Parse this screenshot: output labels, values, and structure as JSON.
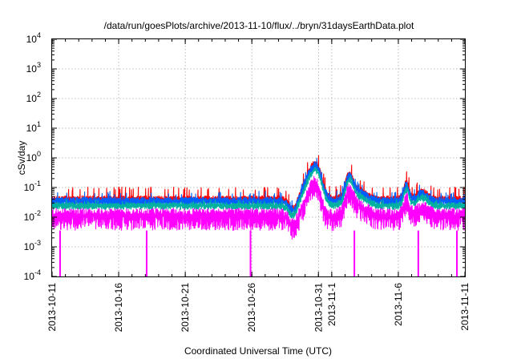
{
  "chart_data": {
    "type": "line",
    "title": "/data/run/goesPlots/archive/2013-11-10/flux/../bryn/31daysEarthData.plot",
    "xlabel": "Coordinated Universal Time (UTC)",
    "ylabel": "cSv/day",
    "yscale": "log",
    "ylim": [
      0.0001,
      10000
    ],
    "xlim": [
      "2013-10-11",
      "2013-11-11"
    ],
    "grid": true,
    "yticks": [
      {
        "value": 0.0001,
        "base": "10",
        "exp": "-4"
      },
      {
        "value": 0.001,
        "base": "10",
        "exp": "-3"
      },
      {
        "value": 0.01,
        "base": "10",
        "exp": "-2"
      },
      {
        "value": 0.1,
        "base": "10",
        "exp": "-1"
      },
      {
        "value": 1,
        "base": "10",
        "exp": "0"
      },
      {
        "value": 10,
        "base": "10",
        "exp": "1"
      },
      {
        "value": 100,
        "base": "10",
        "exp": "2"
      },
      {
        "value": 1000,
        "base": "10",
        "exp": "3"
      },
      {
        "value": 10000,
        "base": "10",
        "exp": "4"
      }
    ],
    "xticks": [
      {
        "label": "2013-10-11",
        "day": 0
      },
      {
        "label": "2013-10-16",
        "day": 5
      },
      {
        "label": "2013-10-21",
        "day": 10
      },
      {
        "label": "2013-10-26",
        "day": 15
      },
      {
        "label": "2013-10-31",
        "day": 20
      },
      {
        "label": "2013-11-1",
        "day": 21
      },
      {
        "label": "2013-11-6",
        "day": 26
      },
      {
        "label": "2013-11-11",
        "day": 31
      }
    ],
    "series": [
      {
        "color": "#ff0000",
        "offset": 0.16,
        "noise": 0.24,
        "spikes": 0.15
      },
      {
        "color": "#0060ff",
        "offset": 0.09,
        "noise": 0.3,
        "spikes": 0.1
      },
      {
        "color": "#00b0a0",
        "offset": -0.06,
        "noise": 0.22,
        "spikes": 0.05
      },
      {
        "color": "#ff00ff",
        "offset": -0.4,
        "noise": 0.55,
        "spikes": 0.0
      }
    ],
    "dropouts_day": [
      0.6,
      7.1,
      14.9,
      22.7,
      27.5,
      30.4
    ]
  }
}
